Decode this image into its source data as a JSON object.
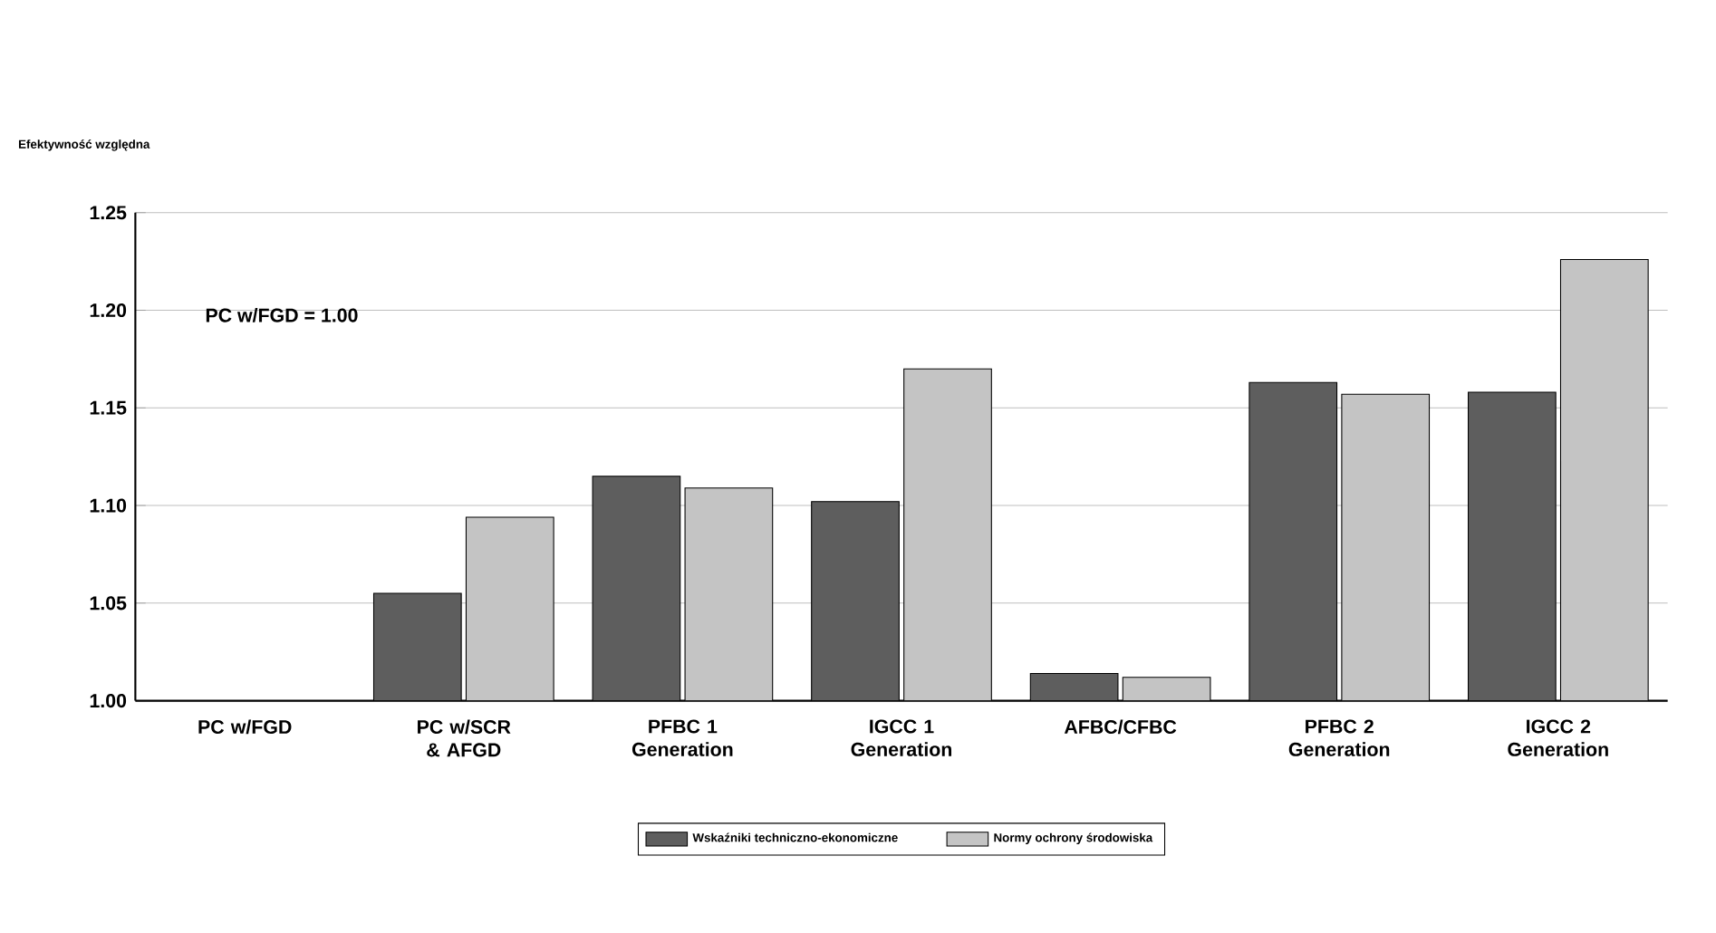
{
  "chart_data": {
    "type": "bar",
    "ylabel": "Efektywność względna",
    "categories": [
      "PC w/FGD",
      "PC w/SCR & AFGD",
      "PFBC 1 Generation",
      "IGCC 1 Generation",
      "AFBC/CFBC",
      "PFBC 2 Generation",
      "IGCC 2 Generation"
    ],
    "series": [
      {
        "name": "Wskaźniki techniczno-ekonomiczne",
        "color": "#5e5e5e",
        "values": [
          null,
          1.055,
          1.115,
          1.102,
          1.014,
          1.163,
          1.158
        ]
      },
      {
        "name": "Normy ochrony środowiska",
        "color": "#c4c4c4",
        "values": [
          null,
          1.094,
          1.109,
          1.17,
          1.012,
          1.157,
          1.226
        ]
      }
    ],
    "ylim": [
      1.0,
      1.25
    ],
    "yticks": [
      {
        "value": 1.0,
        "label": "1.00"
      },
      {
        "value": 1.05,
        "label": "1.05"
      },
      {
        "value": 1.1,
        "label": "1.10"
      },
      {
        "value": 1.15,
        "label": "1.15"
      },
      {
        "value": 1.2,
        "label": "1.20"
      },
      {
        "value": 1.25,
        "label": "1.25"
      }
    ],
    "annotations": [
      "PC w/FGD = 1.00"
    ],
    "grid": "y",
    "legend": "bottom"
  }
}
